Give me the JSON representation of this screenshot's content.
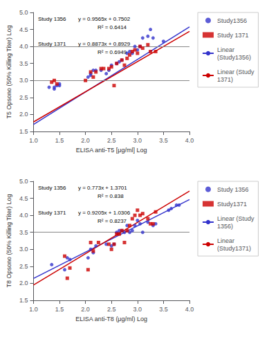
{
  "chart_data": [
    {
      "type": "scatter",
      "xlabel": "ELISA anti-T5 [μg/ml] Log",
      "ylabel": "T5 Opsono (50% Killing Titer) Log",
      "xlim": [
        1.0,
        4.0
      ],
      "ylim": [
        1.5,
        5.0
      ],
      "xticks": [
        {
          "value": 1,
          "label": "1.0"
        },
        1.5,
        {
          "value": 2,
          "label": "2.0"
        },
        2.5,
        {
          "value": 3,
          "label": "3.0"
        },
        3.5,
        {
          "value": 4,
          "label": "4.0"
        }
      ],
      "yticks": [
        1.5,
        {
          "value": 2,
          "label": "2.0"
        },
        2.5,
        {
          "value": 3,
          "label": "3.0"
        },
        3.5,
        {
          "value": 4,
          "label": "4.0"
        },
        4.5,
        {
          "value": 5,
          "label": "5.0"
        }
      ],
      "grid": false,
      "legend": "right",
      "hlines": {
        "values": [
          3.0,
          4.0
        ],
        "color": "#888888"
      },
      "annotations": [
        {
          "label": "Study 1356",
          "equation": "y = 0.9565x + 0.7502",
          "r2": "R² = 0.6414"
        },
        {
          "label": "Study 1371",
          "equation": "y = 0.8873x + 0.8929",
          "r2": "R² = 0.6949"
        }
      ],
      "series": [
        {
          "name": "Study1356",
          "type": "scatter",
          "marker": "circle",
          "color": "#3333CC",
          "x": [
            1.3,
            1.4,
            1.4,
            1.45,
            1.5,
            1.5,
            2.05,
            2.1,
            2.1,
            2.15,
            2.2,
            2.3,
            2.4,
            2.45,
            2.5,
            2.6,
            2.65,
            2.7,
            2.8,
            2.85,
            2.9,
            2.95,
            3.0,
            3.05,
            3.1,
            3.2,
            3.25,
            3.3,
            3.5
          ],
          "values": [
            2.8,
            2.75,
            2.8,
            2.85,
            2.85,
            2.9,
            3.1,
            3.15,
            3.2,
            3.3,
            3.3,
            3.3,
            3.2,
            3.3,
            3.45,
            3.5,
            3.55,
            3.6,
            3.8,
            3.85,
            3.8,
            4.0,
            3.9,
            4.0,
            4.25,
            4.3,
            4.5,
            4.25,
            4.15
          ]
        },
        {
          "name": "Study 1371",
          "type": "scatter",
          "marker": "square",
          "color": "#CC0000",
          "x": [
            1.35,
            1.4,
            1.45,
            2.0,
            2.1,
            2.15,
            2.2,
            2.3,
            2.35,
            2.45,
            2.5,
            2.55,
            2.6,
            2.7,
            2.75,
            2.8,
            2.85,
            2.9,
            2.95,
            3.0,
            3.05,
            3.1,
            3.2,
            3.25,
            3.35
          ],
          "values": [
            2.95,
            3.0,
            2.9,
            3.0,
            3.25,
            3.1,
            3.25,
            3.35,
            3.35,
            3.35,
            3.4,
            2.85,
            3.5,
            3.6,
            3.45,
            3.65,
            3.75,
            3.85,
            3.9,
            3.8,
            4.0,
            3.95,
            4.05,
            3.85,
            3.85
          ]
        },
        {
          "name": "Linear\n(Study1356)",
          "type": "line",
          "line_style": "solid",
          "color": "#3333CC",
          "x": [
            1.0,
            4.0
          ],
          "values": [
            1.7067,
            4.5762
          ]
        },
        {
          "name": "Linear (Study\n1371)",
          "type": "line",
          "line_style": "solid",
          "color": "#CC0000",
          "x": [
            1.0,
            4.0
          ],
          "values": [
            1.7802,
            4.4421
          ]
        }
      ]
    },
    {
      "type": "scatter",
      "xlabel": "ELISA anti-T8 (μg/ml) Log",
      "ylabel": "T8 Opsono (50% Killing Titer) Log",
      "xlim": [
        1.0,
        4.0
      ],
      "ylim": [
        1.5,
        5.0
      ],
      "xticks": [
        {
          "value": 1,
          "label": "1.0"
        },
        1.5,
        {
          "value": 2,
          "label": "2.0"
        },
        2.5,
        {
          "value": 3,
          "label": "3.0"
        },
        3.5,
        {
          "value": 4,
          "label": "4.0"
        }
      ],
      "yticks": [
        1.5,
        {
          "value": 2,
          "label": "2.0"
        },
        2.5,
        {
          "value": 3,
          "label": "3.0"
        },
        3.5,
        {
          "value": 4,
          "label": "4.0"
        },
        4.5,
        {
          "value": 5,
          "label": "5.0"
        }
      ],
      "grid": false,
      "legend": "right",
      "hlines": {
        "values": [
          3.5
        ],
        "color": "#888888"
      },
      "annotations": [
        {
          "label": "Study 1356",
          "equation": "y = 0.773x + 1.3701",
          "r2": "R² = 0.838"
        },
        {
          "label": "Study 1371",
          "equation": "y = 0.9205x + 1.0306",
          "r2": "R² = 0.8237"
        }
      ],
      "series": [
        {
          "name": "Study 1356",
          "type": "scatter",
          "marker": "circle",
          "color": "#3333CC",
          "x": [
            1.35,
            1.6,
            1.65,
            1.7,
            2.05,
            2.1,
            2.15,
            2.2,
            2.4,
            2.5,
            2.55,
            2.6,
            2.65,
            2.7,
            2.75,
            2.8,
            2.85,
            2.9,
            2.95,
            3.0,
            3.05,
            3.1,
            3.2,
            3.3,
            3.35,
            3.6,
            3.65,
            3.75,
            3.8
          ],
          "values": [
            2.55,
            2.4,
            2.75,
            2.7,
            2.75,
            3.0,
            2.9,
            3.1,
            3.15,
            3.1,
            3.15,
            3.5,
            3.55,
            3.55,
            3.5,
            3.7,
            3.5,
            3.55,
            3.7,
            3.85,
            3.75,
            3.5,
            3.8,
            3.7,
            3.75,
            4.15,
            4.2,
            4.3,
            4.3
          ]
        },
        {
          "name": "Study1371",
          "type": "scatter",
          "marker": "square",
          "color": "#CC0000",
          "x": [
            1.6,
            1.65,
            1.7,
            2.05,
            2.1,
            2.15,
            2.25,
            2.45,
            2.5,
            2.55,
            2.6,
            2.65,
            2.7,
            2.75,
            2.8,
            2.85,
            2.9,
            2.95,
            3.0,
            3.05,
            3.1,
            3.2,
            3.25,
            3.3,
            3.35
          ],
          "values": [
            2.8,
            2.15,
            2.45,
            2.4,
            3.2,
            2.95,
            3.2,
            3.15,
            3.0,
            3.15,
            3.45,
            3.45,
            3.55,
            3.2,
            3.55,
            3.7,
            3.9,
            4.0,
            4.15,
            4.0,
            4.05,
            3.9,
            3.75,
            3.75,
            4.1
          ]
        },
        {
          "name": "Linear (Study\n1356)",
          "type": "line",
          "line_style": "solid",
          "color": "#3333CC",
          "x": [
            1.0,
            4.0
          ],
          "values": [
            2.1431,
            4.4621
          ]
        },
        {
          "name": "Linear\n(Study1371)",
          "type": "line",
          "line_style": "solid",
          "color": "#CC0000",
          "x": [
            1.0,
            4.0
          ],
          "values": [
            1.9511,
            4.7126
          ]
        }
      ]
    }
  ]
}
